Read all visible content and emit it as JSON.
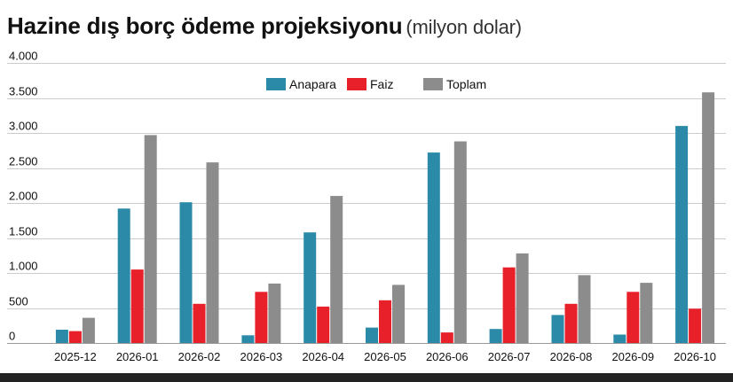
{
  "header": {
    "title": "Hazine dış borç ödeme projeksiyonu",
    "subtitle": "(milyon dolar)"
  },
  "chart_data": {
    "type": "bar",
    "title": "Hazine dış borç ödeme projeksiyonu",
    "subtitle": "(milyon dolar)",
    "xlabel": "",
    "ylabel": "",
    "ylim": [
      0,
      4000
    ],
    "yticks": [
      0,
      500,
      1000,
      1500,
      2000,
      2500,
      3000,
      3500,
      4000
    ],
    "ytick_labels": [
      "0",
      "500",
      "1.000",
      "1.500",
      "2.000",
      "2.500",
      "3.000",
      "3.500",
      "4.000"
    ],
    "grid": true,
    "legend_position": "top-center",
    "categories": [
      "2025-12",
      "2026-01",
      "2026-02",
      "2026-03",
      "2026-04",
      "2026-05",
      "2026-06",
      "2026-07",
      "2026-08",
      "2026-09",
      "2026-10"
    ],
    "series": [
      {
        "name": "Anapara",
        "color": "#2a8aa8",
        "values": [
          190,
          1920,
          2010,
          110,
          1580,
          220,
          2720,
          200,
          400,
          120,
          3100
        ]
      },
      {
        "name": "Faiz",
        "color": "#e8202a",
        "values": [
          170,
          1050,
          560,
          730,
          520,
          610,
          150,
          1080,
          560,
          730,
          490
        ]
      },
      {
        "name": "Toplam",
        "color": "#8c8c8c",
        "values": [
          360,
          2970,
          2580,
          850,
          2100,
          830,
          2880,
          1280,
          970,
          860,
          3580
        ]
      }
    ]
  }
}
